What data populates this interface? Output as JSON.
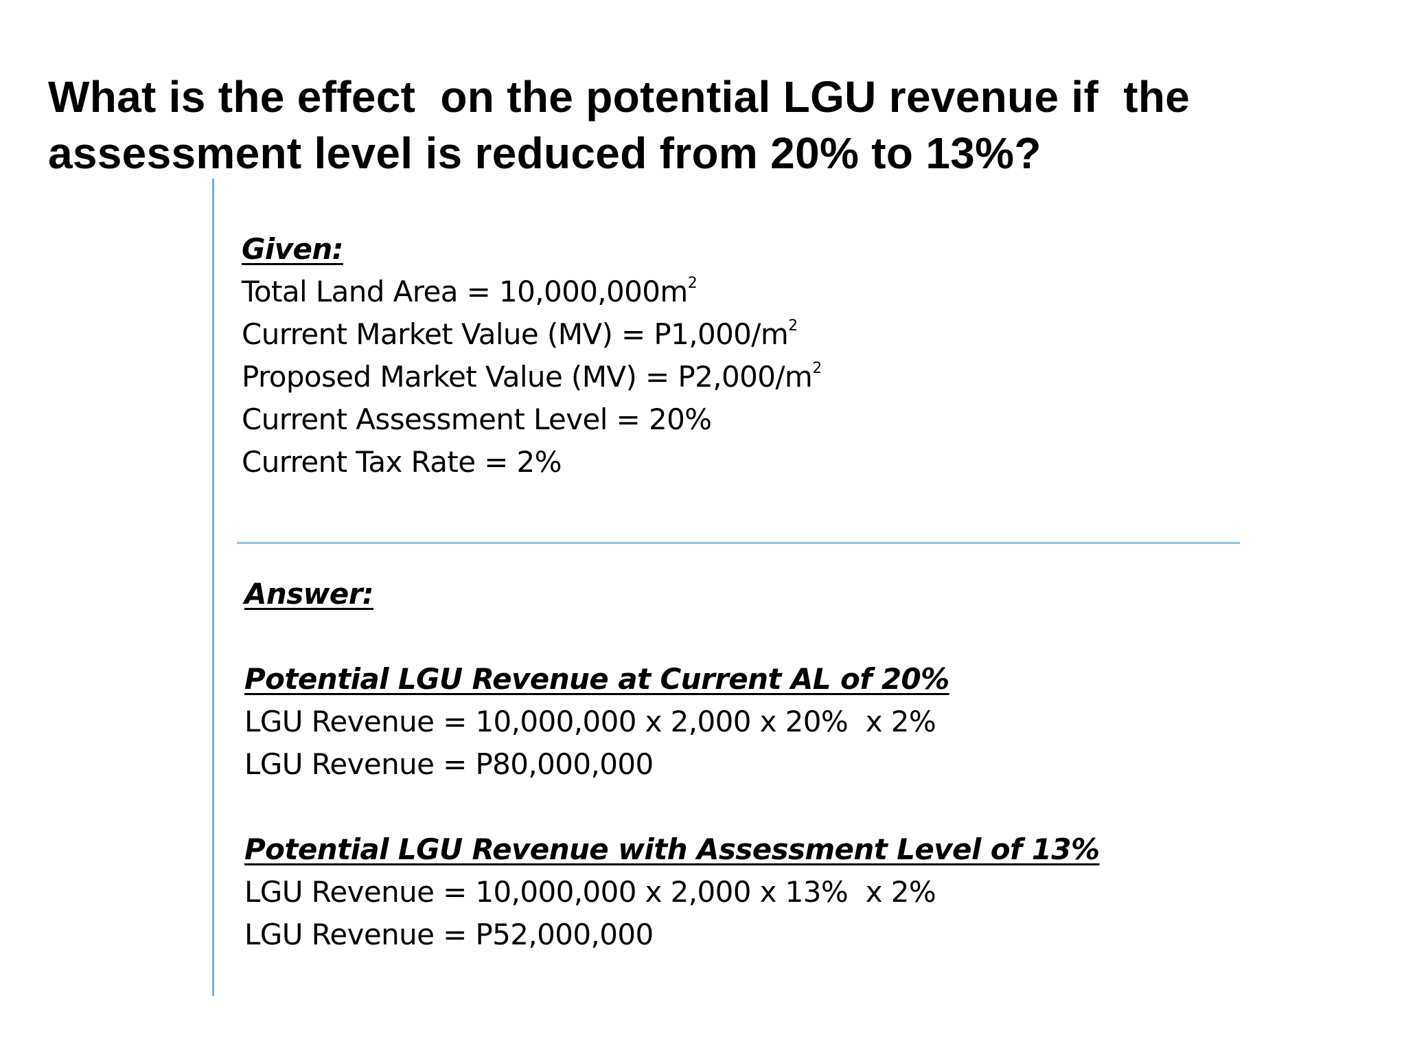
{
  "title": {
    "line1": "What is the effect  on the potential LGU revenue if  the",
    "line2": "assessment level is reduced from 20% to 13%?"
  },
  "given": {
    "heading": "Given:",
    "items": [
      {
        "text": "Total Land Area = 10,000,000m",
        "sup": "2"
      },
      {
        "text": "Current Market Value (MV) = P1,000/m",
        "sup": "2"
      },
      {
        "text": "Proposed Market Value (MV) = P2,000/m",
        "sup": "2"
      },
      {
        "text": "Current Assessment Level = 20%",
        "sup": ""
      },
      {
        "text": "Current Tax Rate = 2%",
        "sup": ""
      }
    ]
  },
  "answer": {
    "heading": "Answer:",
    "sections": [
      {
        "heading": "Potential LGU Revenue at Current AL of 20%",
        "formula": "LGU Revenue = 10,000,000 x 2,000 x 20%  x 2%",
        "result": "LGU Revenue = P80,000,000"
      },
      {
        "heading": "Potential LGU Revenue with Assessment Level of 13%",
        "formula": "LGU Revenue = 10,000,000 x 2,000 x 13%  x 2%",
        "result": "LGU Revenue = P52,000,000"
      }
    ]
  },
  "colors": {
    "divider": "#6fb3cf",
    "text": "#000000",
    "background": "#ffffff"
  }
}
